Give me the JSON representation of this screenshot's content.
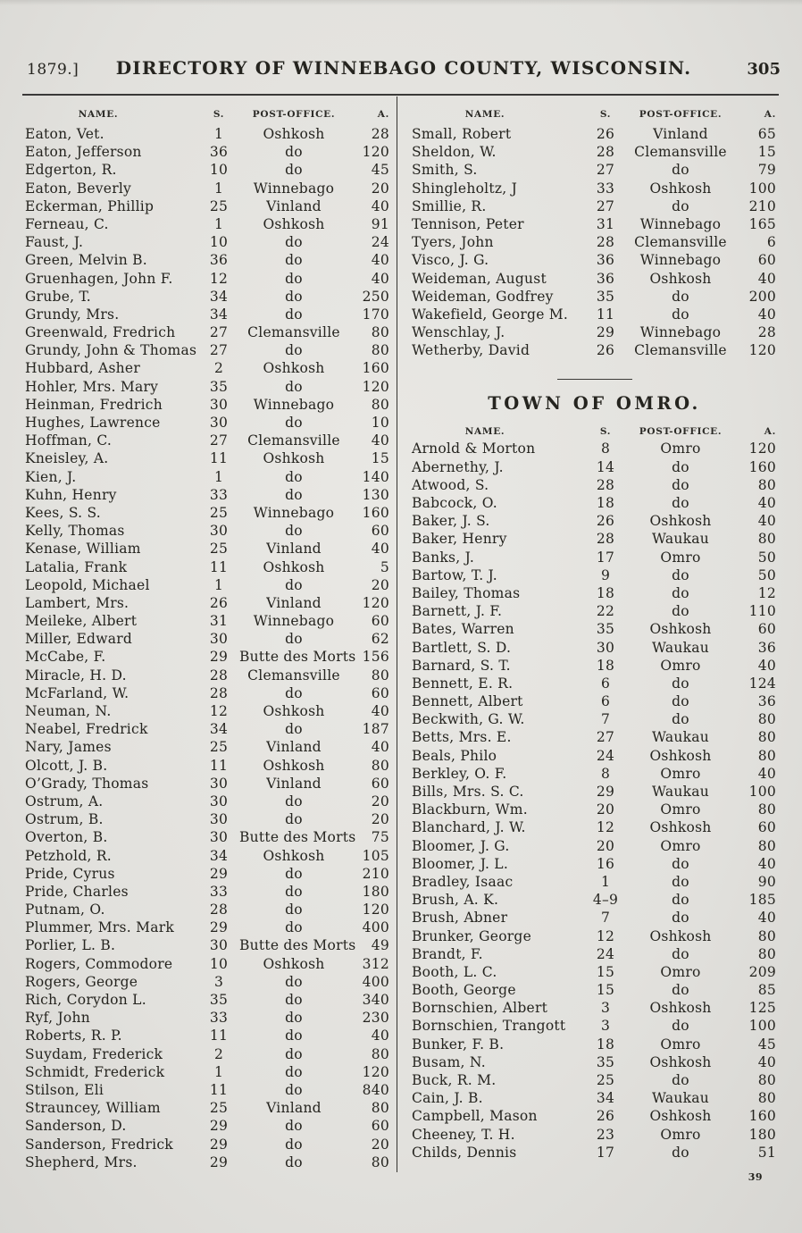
{
  "header": {
    "year": "1879.]",
    "title": "DIRECTORY OF WINNEBAGO COUNTY, WISCONSIN.",
    "page_number": "305"
  },
  "table_headers": {
    "name": "NAME.",
    "section": "S.",
    "post_office": "POST-OFFICE.",
    "acres": "A."
  },
  "colors": {
    "paper": "#e2e1dd",
    "ink": "#25241f"
  },
  "left_rows": [
    {
      "name": "Eaton, Vet.",
      "s": "1",
      "po": "Oshkosh",
      "a": "28"
    },
    {
      "name": "Eaton, Jefferson",
      "s": "36",
      "po": "do",
      "a": "120"
    },
    {
      "name": "Edgerton, R.",
      "s": "10",
      "po": "do",
      "a": "45"
    },
    {
      "name": "Eaton, Beverly",
      "s": "1",
      "po": "Winnebago",
      "a": "20"
    },
    {
      "name": "Eckerman, Phillip",
      "s": "25",
      "po": "Vinland",
      "a": "40"
    },
    {
      "name": "Ferneau, C.",
      "s": "1",
      "po": "Oshkosh",
      "a": "91"
    },
    {
      "name": "Faust, J.",
      "s": "10",
      "po": "do",
      "a": "24"
    },
    {
      "name": "Green, Melvin B.",
      "s": "36",
      "po": "do",
      "a": "40"
    },
    {
      "name": "Gruenhagen, John F.",
      "s": "12",
      "po": "do",
      "a": "40"
    },
    {
      "name": "Grube, T.",
      "s": "34",
      "po": "do",
      "a": "250"
    },
    {
      "name": "Grundy, Mrs.",
      "s": "34",
      "po": "do",
      "a": "170"
    },
    {
      "name": "Greenwald, Fredrich",
      "s": "27",
      "po": "Clemansville",
      "a": "80"
    },
    {
      "name": "Grundy, John & Thomas",
      "s": "27",
      "po": "do",
      "a": "80"
    },
    {
      "name": "Hubbard, Asher",
      "s": "2",
      "po": "Oshkosh",
      "a": "160"
    },
    {
      "name": "Hohler, Mrs. Mary",
      "s": "35",
      "po": "do",
      "a": "120"
    },
    {
      "name": "Heinman, Fredrich",
      "s": "30",
      "po": "Winnebago",
      "a": "80"
    },
    {
      "name": "Hughes, Lawrence",
      "s": "30",
      "po": "do",
      "a": "10"
    },
    {
      "name": "Hoffman, C.",
      "s": "27",
      "po": "Clemansville",
      "a": "40"
    },
    {
      "name": "Kneisley, A.",
      "s": "11",
      "po": "Oshkosh",
      "a": "15"
    },
    {
      "name": "Kien, J.",
      "s": "1",
      "po": "do",
      "a": "140"
    },
    {
      "name": "Kuhn, Henry",
      "s": "33",
      "po": "do",
      "a": "130"
    },
    {
      "name": "Kees, S. S.",
      "s": "25",
      "po": "Winnebago",
      "a": "160"
    },
    {
      "name": "Kelly, Thomas",
      "s": "30",
      "po": "do",
      "a": "60"
    },
    {
      "name": "Kenase, William",
      "s": "25",
      "po": "Vinland",
      "a": "40"
    },
    {
      "name": "Latalia, Frank",
      "s": "11",
      "po": "Oshkosh",
      "a": "5"
    },
    {
      "name": "Leopold, Michael",
      "s": "1",
      "po": "do",
      "a": "20"
    },
    {
      "name": "Lambert, Mrs.",
      "s": "26",
      "po": "Vinland",
      "a": "120"
    },
    {
      "name": "Meileke, Albert",
      "s": "31",
      "po": "Winnebago",
      "a": "60"
    },
    {
      "name": "Miller, Edward",
      "s": "30",
      "po": "do",
      "a": "62"
    },
    {
      "name": "McCabe, F.",
      "s": "29",
      "po": "Butte des Morts",
      "a": "156"
    },
    {
      "name": "Miracle, H. D.",
      "s": "28",
      "po": "Clemansville",
      "a": "80"
    },
    {
      "name": "McFarland, W.",
      "s": "28",
      "po": "do",
      "a": "60"
    },
    {
      "name": "Neuman, N.",
      "s": "12",
      "po": "Oshkosh",
      "a": "40"
    },
    {
      "name": "Neabel, Fredrick",
      "s": "34",
      "po": "do",
      "a": "187"
    },
    {
      "name": "Nary, James",
      "s": "25",
      "po": "Vinland",
      "a": "40"
    },
    {
      "name": "Olcott, J. B.",
      "s": "11",
      "po": "Oshkosh",
      "a": "80"
    },
    {
      "name": "O’Grady, Thomas",
      "s": "30",
      "po": "Vinland",
      "a": "60"
    },
    {
      "name": "Ostrum, A.",
      "s": "30",
      "po": "do",
      "a": "20"
    },
    {
      "name": "Ostrum, B.",
      "s": "30",
      "po": "do",
      "a": "20"
    },
    {
      "name": "Overton, B.",
      "s": "30",
      "po": "Butte des Morts",
      "a": "75"
    },
    {
      "name": "Petzhold, R.",
      "s": "34",
      "po": "Oshkosh",
      "a": "105"
    },
    {
      "name": "Pride, Cyrus",
      "s": "29",
      "po": "do",
      "a": "210"
    },
    {
      "name": "Pride, Charles",
      "s": "33",
      "po": "do",
      "a": "180"
    },
    {
      "name": "Putnam, O.",
      "s": "28",
      "po": "do",
      "a": "120"
    },
    {
      "name": "Plummer, Mrs. Mark",
      "s": "29",
      "po": "do",
      "a": "400"
    },
    {
      "name": "Porlier, L. B.",
      "s": "30",
      "po": "Butte des Morts",
      "a": "49"
    },
    {
      "name": "Rogers, Commodore",
      "s": "10",
      "po": "Oshkosh",
      "a": "312"
    },
    {
      "name": "Rogers, George",
      "s": "3",
      "po": "do",
      "a": "400"
    },
    {
      "name": "Rich, Corydon L.",
      "s": "35",
      "po": "do",
      "a": "340"
    },
    {
      "name": "Ryf, John",
      "s": "33",
      "po": "do",
      "a": "230"
    },
    {
      "name": "Roberts, R. P.",
      "s": "11",
      "po": "do",
      "a": "40"
    },
    {
      "name": "Suydam, Frederick",
      "s": "2",
      "po": "do",
      "a": "80"
    },
    {
      "name": "Schmidt, Frederick",
      "s": "1",
      "po": "do",
      "a": "120"
    },
    {
      "name": "Stilson, Eli",
      "s": "11",
      "po": "do",
      "a": "840"
    },
    {
      "name": "Strauncey, William",
      "s": "25",
      "po": "Vinland",
      "a": "80"
    },
    {
      "name": "Sanderson, D.",
      "s": "29",
      "po": "do",
      "a": "60"
    },
    {
      "name": "Sanderson, Fredrick",
      "s": "29",
      "po": "do",
      "a": "20"
    },
    {
      "name": "Shepherd, Mrs.",
      "s": "29",
      "po": "do",
      "a": "80"
    }
  ],
  "right_rows": [
    {
      "name": "Small, Robert",
      "s": "26",
      "po": "Vinland",
      "a": "65"
    },
    {
      "name": "Sheldon, W.",
      "s": "28",
      "po": "Clemansville",
      "a": "15"
    },
    {
      "name": "Smith, S.",
      "s": "27",
      "po": "do",
      "a": "79"
    },
    {
      "name": "Shingleholtz, J",
      "s": "33",
      "po": "Oshkosh",
      "a": "100"
    },
    {
      "name": "Smillie, R.",
      "s": "27",
      "po": "do",
      "a": "210"
    },
    {
      "name": "Tennison, Peter",
      "s": "31",
      "po": "Winnebago",
      "a": "165"
    },
    {
      "name": "Tyers, John",
      "s": "28",
      "po": "Clemansville",
      "a": "6"
    },
    {
      "name": "Visco, J. G.",
      "s": "36",
      "po": "Winnebago",
      "a": "60"
    },
    {
      "name": "Weideman, August",
      "s": "36",
      "po": "Oshkosh",
      "a": "40"
    },
    {
      "name": "Weideman, Godfrey",
      "s": "35",
      "po": "do",
      "a": "200"
    },
    {
      "name": "Wakefield, George M.",
      "s": "11",
      "po": "do",
      "a": "40"
    },
    {
      "name": "Wenschlay, J.",
      "s": "29",
      "po": "Winnebago",
      "a": "28"
    },
    {
      "name": "Wetherby, David",
      "s": "26",
      "po": "Clemansville",
      "a": "120"
    }
  ],
  "omro_section": {
    "title": "TOWN OF OMRO."
  },
  "omro_rows": [
    {
      "name": "Arnold & Morton",
      "s": "8",
      "po": "Omro",
      "a": "120"
    },
    {
      "name": "Abernethy, J.",
      "s": "14",
      "po": "do",
      "a": "160"
    },
    {
      "name": "Atwood, S.",
      "s": "28",
      "po": "do",
      "a": "80"
    },
    {
      "name": "Babcock, O.",
      "s": "18",
      "po": "do",
      "a": "40"
    },
    {
      "name": "Baker, J. S.",
      "s": "26",
      "po": "Oshkosh",
      "a": "40"
    },
    {
      "name": "Baker, Henry",
      "s": "28",
      "po": "Waukau",
      "a": "80"
    },
    {
      "name": "Banks, J.",
      "s": "17",
      "po": "Omro",
      "a": "50"
    },
    {
      "name": "Bartow, T. J.",
      "s": "9",
      "po": "do",
      "a": "50"
    },
    {
      "name": "Bailey, Thomas",
      "s": "18",
      "po": "do",
      "a": "12"
    },
    {
      "name": "Barnett, J. F.",
      "s": "22",
      "po": "do",
      "a": "110"
    },
    {
      "name": "Bates, Warren",
      "s": "35",
      "po": "Oshkosh",
      "a": "60"
    },
    {
      "name": "Bartlett, S. D.",
      "s": "30",
      "po": "Waukau",
      "a": "36"
    },
    {
      "name": "Barnard, S. T.",
      "s": "18",
      "po": "Omro",
      "a": "40"
    },
    {
      "name": "Bennett, E. R.",
      "s": "6",
      "po": "do",
      "a": "124"
    },
    {
      "name": "Bennett, Albert",
      "s": "6",
      "po": "do",
      "a": "36"
    },
    {
      "name": "Beckwith, G. W.",
      "s": "7",
      "po": "do",
      "a": "80"
    },
    {
      "name": "Betts, Mrs. E.",
      "s": "27",
      "po": "Waukau",
      "a": "80"
    },
    {
      "name": "Beals, Philo",
      "s": "24",
      "po": "Oshkosh",
      "a": "80"
    },
    {
      "name": "Berkley, O. F.",
      "s": "8",
      "po": "Omro",
      "a": "40"
    },
    {
      "name": "Bills, Mrs. S. C.",
      "s": "29",
      "po": "Waukau",
      "a": "100"
    },
    {
      "name": "Blackburn, Wm.",
      "s": "20",
      "po": "Omro",
      "a": "80"
    },
    {
      "name": "Blanchard, J. W.",
      "s": "12",
      "po": "Oshkosh",
      "a": "60"
    },
    {
      "name": "Bloomer, J. G.",
      "s": "20",
      "po": "Omro",
      "a": "80"
    },
    {
      "name": "Bloomer, J. L.",
      "s": "16",
      "po": "do",
      "a": "40"
    },
    {
      "name": "Bradley, Isaac",
      "s": "1",
      "po": "do",
      "a": "90"
    },
    {
      "name": "Brush, A. K.",
      "s": "4–9",
      "po": "do",
      "a": "185"
    },
    {
      "name": "Brush, Abner",
      "s": "7",
      "po": "do",
      "a": "40"
    },
    {
      "name": "Brunker, George",
      "s": "12",
      "po": "Oshkosh",
      "a": "80"
    },
    {
      "name": "Brandt, F.",
      "s": "24",
      "po": "do",
      "a": "80"
    },
    {
      "name": "Booth, L. C.",
      "s": "15",
      "po": "Omro",
      "a": "209"
    },
    {
      "name": "Booth, George",
      "s": "15",
      "po": "do",
      "a": "85"
    },
    {
      "name": "Bornschien, Albert",
      "s": "3",
      "po": "Oshkosh",
      "a": "125"
    },
    {
      "name": "Bornschien, Trangott",
      "s": "3",
      "po": "do",
      "a": "100"
    },
    {
      "name": "Bunker, F. B.",
      "s": "18",
      "po": "Omro",
      "a": "45"
    },
    {
      "name": "Busam, N.",
      "s": "35",
      "po": "Oshkosh",
      "a": "40"
    },
    {
      "name": "Buck, R. M.",
      "s": "25",
      "po": "do",
      "a": "80"
    },
    {
      "name": "Cain, J. B.",
      "s": "34",
      "po": "Waukau",
      "a": "80"
    },
    {
      "name": "Campbell, Mason",
      "s": "26",
      "po": "Oshkosh",
      "a": "160"
    },
    {
      "name": "Cheeney, T. H.",
      "s": "23",
      "po": "Omro",
      "a": "180"
    },
    {
      "name": "Childs, Dennis",
      "s": "17",
      "po": "do",
      "a": "51"
    }
  ],
  "signature_mark": "39"
}
